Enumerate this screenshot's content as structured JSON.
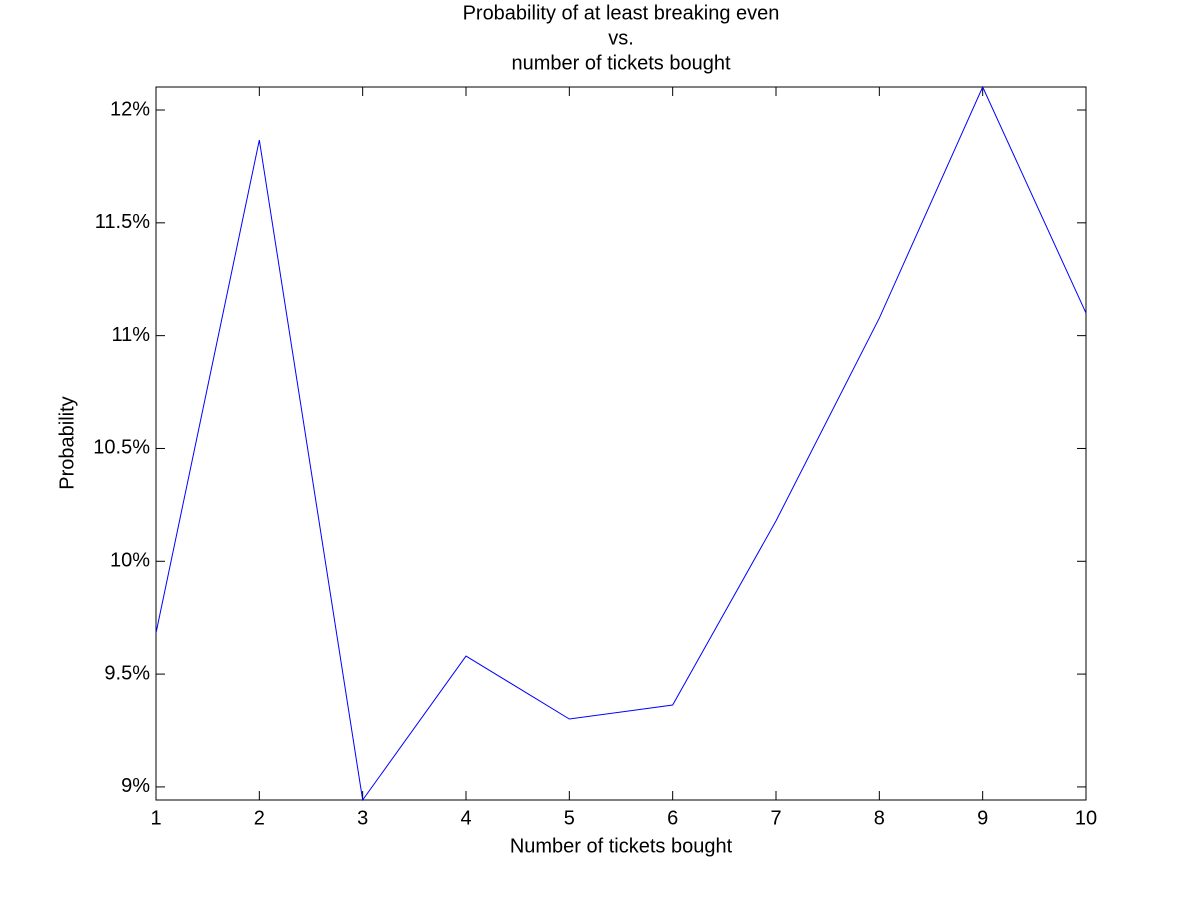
{
  "chart_data": {
    "type": "line",
    "title": [
      "Probability of at least breaking even",
      "vs.",
      "number of tickets bought"
    ],
    "x_label": "Number of tickets bought",
    "y_label": "Probability",
    "x": [
      1,
      2,
      3,
      4,
      5,
      6,
      7,
      8,
      9,
      10
    ],
    "series": [
      {
        "color": "#0000ff",
        "values": [
          9.682,
          11.867,
          8.942,
          9.58,
          9.301,
          9.363,
          10.179,
          11.078,
          12.102,
          11.1
        ]
      }
    ],
    "xlim": [
      1,
      10
    ],
    "ylim": [
      8.942,
      12.102
    ],
    "xticks": [
      1,
      2,
      3,
      4,
      5,
      6,
      7,
      8,
      9,
      10
    ],
    "yticks": [
      {
        "value": 9,
        "label": "9%"
      },
      {
        "value": 9.5,
        "label": "9.5%"
      },
      {
        "value": 10,
        "label": "10%"
      },
      {
        "value": 10.5,
        "label": "10.5%"
      },
      {
        "value": 11,
        "label": "11%"
      },
      {
        "value": 11.5,
        "label": "11.5%"
      },
      {
        "value": 12,
        "label": "12%"
      }
    ],
    "grid": false
  }
}
